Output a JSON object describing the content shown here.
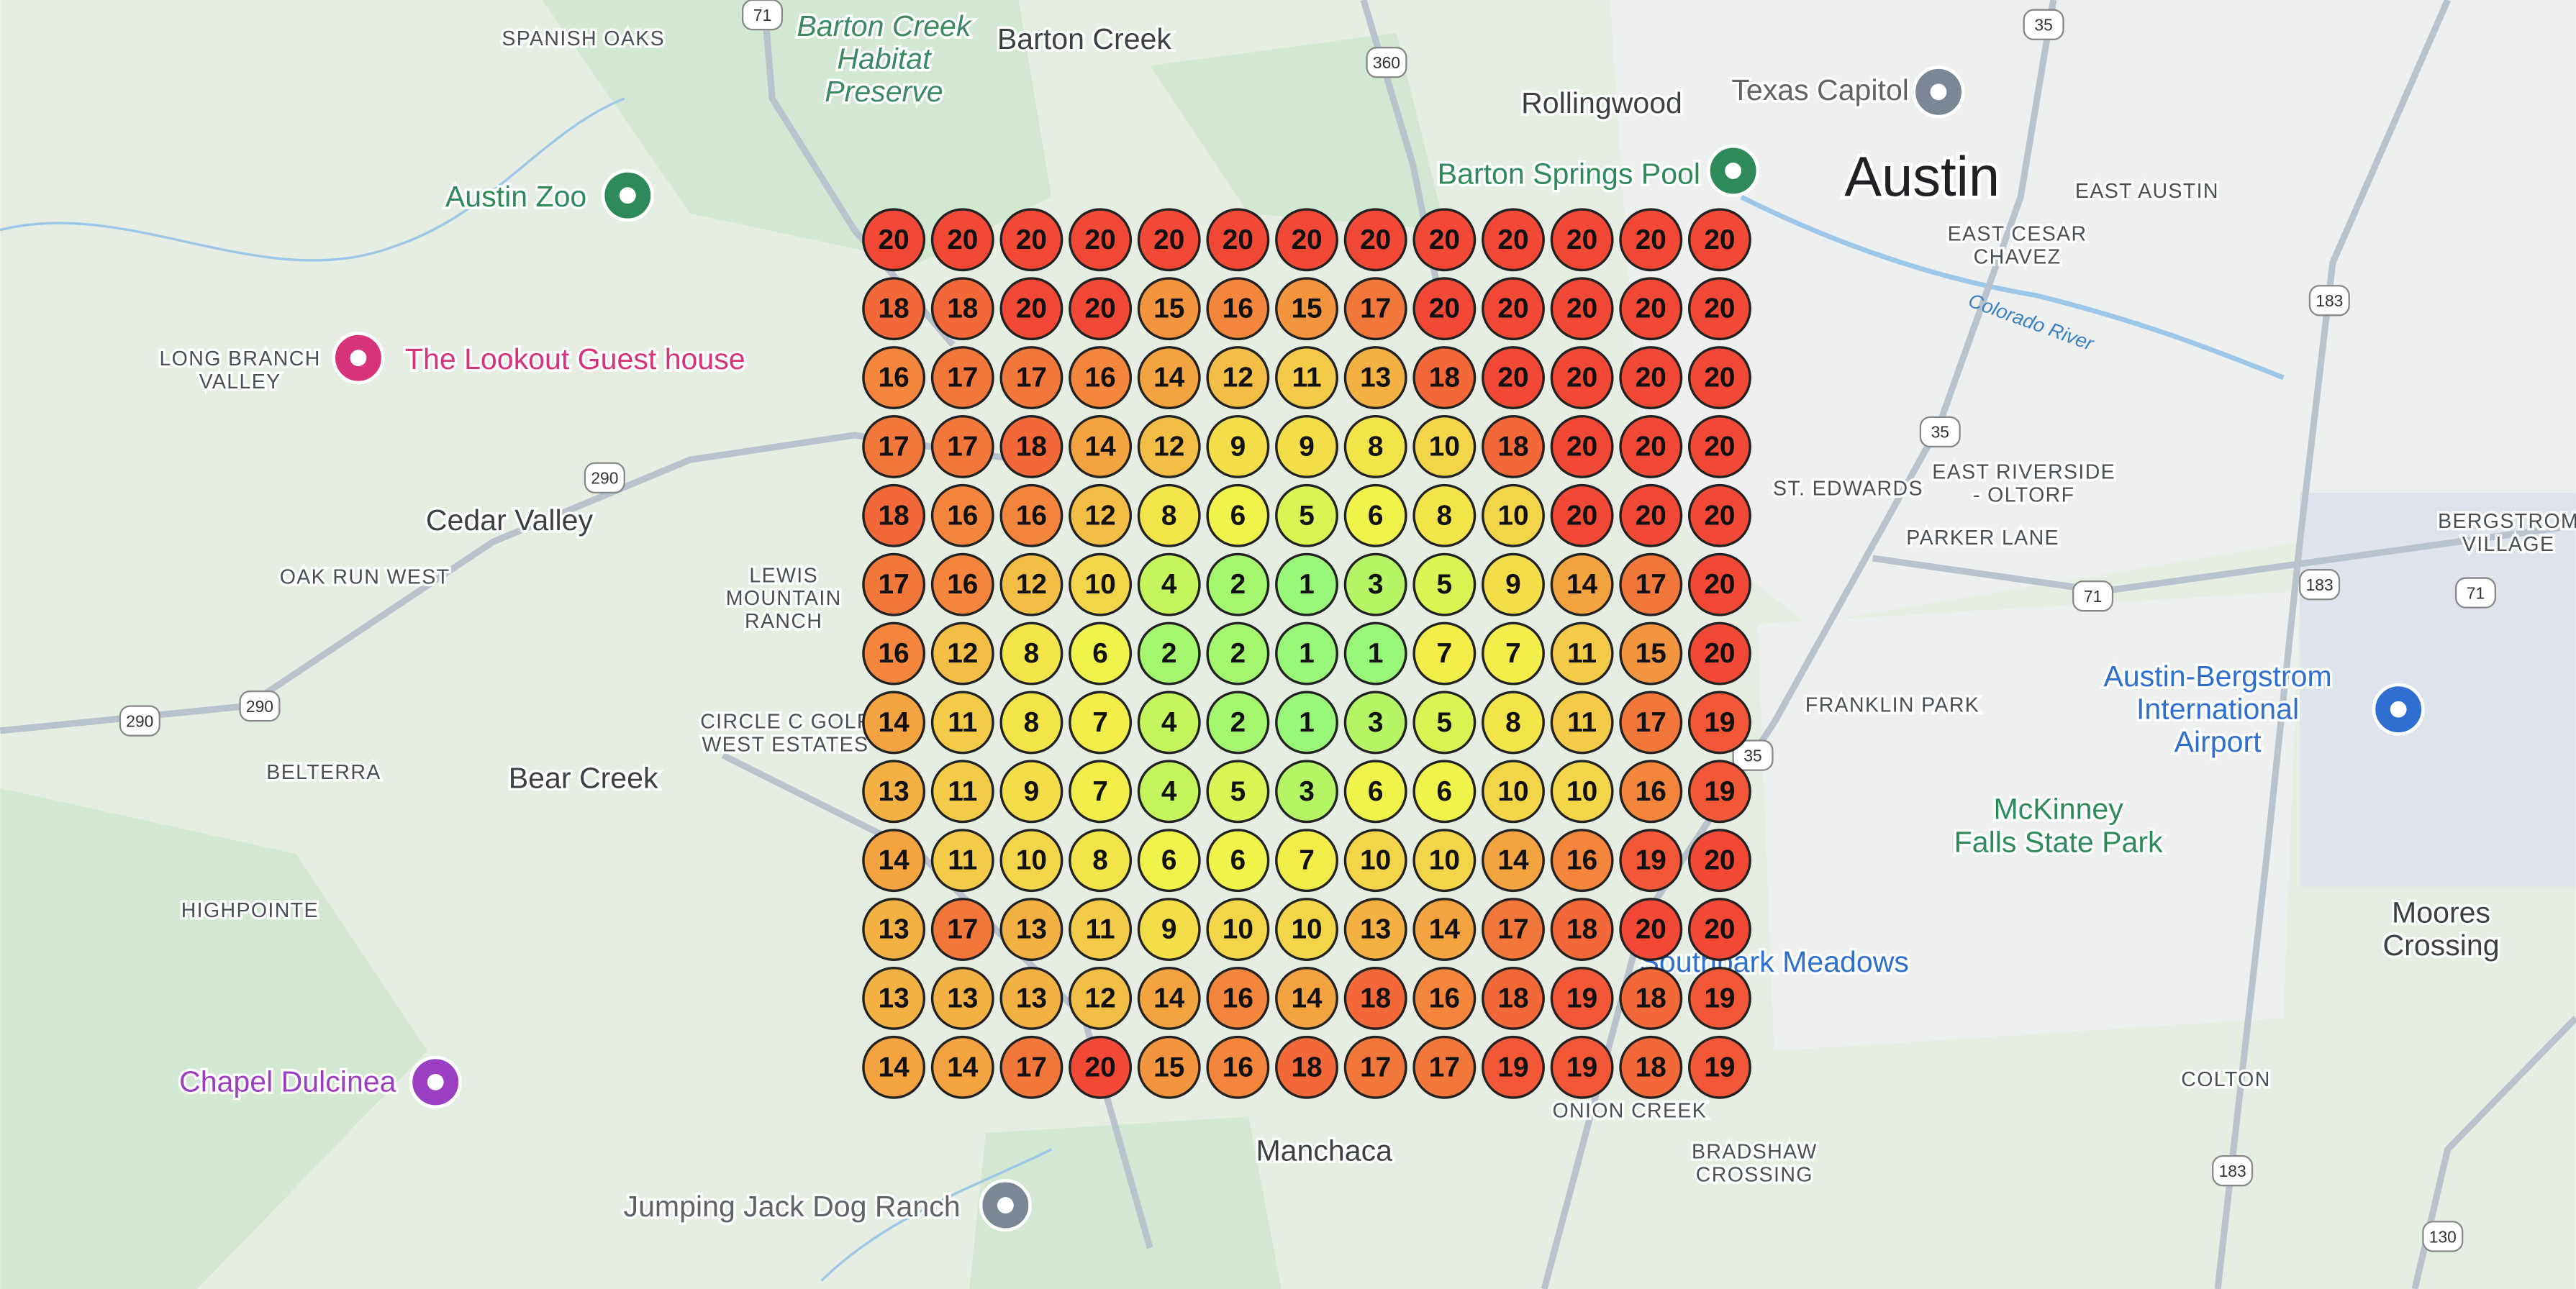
{
  "map_labels": [
    {
      "lines": [
        "SPANISH OAKS"
      ]
    },
    {
      "lines": [
        "Barton Creek",
        "Habitat",
        "Preserve"
      ]
    },
    {
      "lines": [
        "Barton Creek"
      ]
    },
    {
      "lines": [
        "Rollingwood"
      ]
    },
    {
      "lines": [
        "Texas Capitol"
      ]
    },
    {
      "lines": [
        "Austin"
      ]
    },
    {
      "lines": [
        "Barton Springs Pool"
      ]
    },
    {
      "lines": [
        "EAST AUSTIN"
      ]
    },
    {
      "lines": [
        "EAST CESAR",
        "CHAVEZ"
      ]
    },
    {
      "lines": [
        "Austin Zoo"
      ]
    },
    {
      "lines": [
        "LONG BRANCH",
        "VALLEY"
      ]
    },
    {
      "lines": [
        "The Lookout Guest house"
      ]
    },
    {
      "lines": [
        "Cedar Valley"
      ]
    },
    {
      "lines": [
        "OAK RUN WEST"
      ]
    },
    {
      "lines": [
        "LEWIS",
        "MOUNTAIN",
        "RANCH"
      ]
    },
    {
      "lines": [
        "ST. EDWARDS"
      ]
    },
    {
      "lines": [
        "EAST RIVERSIDE",
        "- OLTORF"
      ]
    },
    {
      "lines": [
        "PARKER LANE"
      ]
    },
    {
      "lines": [
        "BERGSTROM",
        "VILLAGE"
      ]
    },
    {
      "lines": [
        "Austin-Bergstrom",
        "International",
        "Airport"
      ]
    },
    {
      "lines": [
        "FRANKLIN PARK"
      ]
    },
    {
      "lines": [
        "CIRCLE C GOLF",
        "WEST ESTATES"
      ]
    },
    {
      "lines": [
        "BELTERRA"
      ]
    },
    {
      "lines": [
        "Bear Creek"
      ]
    },
    {
      "lines": [
        "McKinney",
        "Falls State Park"
      ]
    },
    {
      "lines": [
        "HIGHPOINTE"
      ]
    },
    {
      "lines": [
        "Moores",
        "Crossing"
      ]
    },
    {
      "lines": [
        "Southpark Meadows"
      ]
    },
    {
      "lines": [
        "Chapel Dulcinea"
      ]
    },
    {
      "lines": [
        "COLTON"
      ]
    },
    {
      "lines": [
        "ONION CREEK"
      ]
    },
    {
      "lines": [
        "Manchaca"
      ]
    },
    {
      "lines": [
        "BRADSHAW",
        "CROSSING"
      ]
    },
    {
      "lines": [
        "Jumping Jack Dog Ranch"
      ]
    },
    {
      "lines": [
        "Colorado River"
      ]
    }
  ],
  "road_shields": [
    "71",
    "360",
    "35",
    "290",
    "290",
    "290",
    "183",
    "35",
    "71",
    "183",
    "71",
    "35",
    "183",
    "130"
  ],
  "rank_grid": {
    "rows": [
      [
        20,
        20,
        20,
        20,
        20,
        20,
        20,
        20,
        20,
        20,
        20,
        20,
        20
      ],
      [
        18,
        18,
        20,
        20,
        15,
        16,
        15,
        17,
        20,
        20,
        20,
        20,
        20
      ],
      [
        16,
        17,
        17,
        16,
        14,
        12,
        11,
        13,
        18,
        20,
        20,
        20,
        20
      ],
      [
        17,
        17,
        18,
        14,
        12,
        9,
        9,
        8,
        10,
        18,
        20,
        20,
        20
      ],
      [
        18,
        16,
        16,
        12,
        8,
        6,
        5,
        6,
        8,
        10,
        20,
        20,
        20
      ],
      [
        17,
        16,
        12,
        10,
        4,
        2,
        1,
        3,
        5,
        9,
        14,
        17,
        20
      ],
      [
        16,
        12,
        8,
        6,
        2,
        2,
        1,
        1,
        7,
        7,
        11,
        15,
        20
      ],
      [
        14,
        11,
        8,
        7,
        4,
        2,
        1,
        3,
        5,
        8,
        11,
        17,
        19
      ],
      [
        13,
        11,
        9,
        7,
        4,
        5,
        3,
        6,
        6,
        10,
        10,
        16,
        19
      ],
      [
        14,
        11,
        10,
        8,
        6,
        6,
        7,
        10,
        10,
        14,
        16,
        19,
        20
      ],
      [
        13,
        17,
        13,
        11,
        9,
        10,
        10,
        13,
        14,
        17,
        18,
        20,
        20
      ],
      [
        13,
        13,
        13,
        12,
        14,
        16,
        14,
        18,
        16,
        18,
        19,
        18,
        19
      ],
      [
        14,
        14,
        17,
        20,
        15,
        16,
        18,
        17,
        17,
        19,
        19,
        18,
        19
      ]
    ]
  }
}
